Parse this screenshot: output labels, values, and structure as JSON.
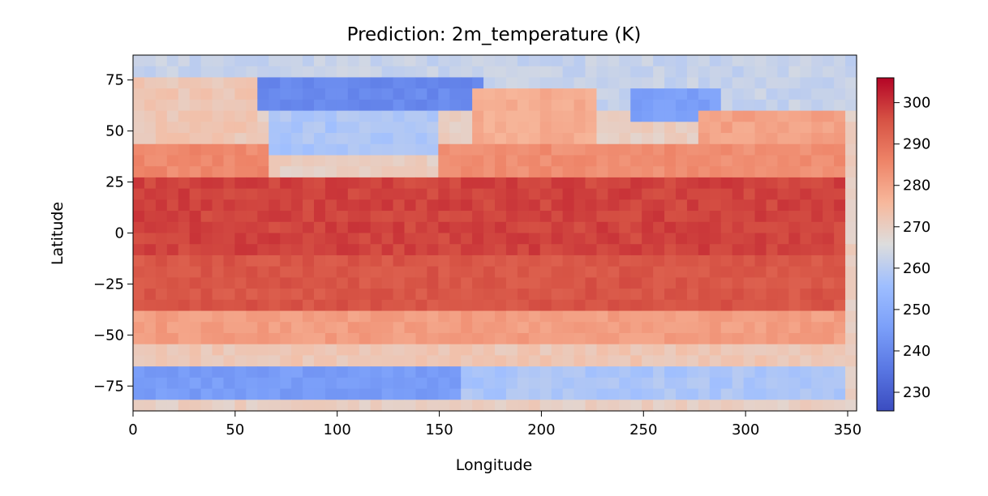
{
  "chart_data": {
    "type": "heatmap",
    "title": "Prediction: 2m_temperature (K)",
    "xlabel": "Longitude",
    "ylabel": "Latitude",
    "xlim": [
      0,
      354.375
    ],
    "ylim": [
      -87.1875,
      87.1875
    ],
    "grid": false,
    "colormap": "coolwarm",
    "x_ticks": [
      0,
      50,
      100,
      150,
      200,
      250,
      300,
      350
    ],
    "x_tick_labels": [
      "0",
      "50",
      "100",
      "150",
      "200",
      "250",
      "300",
      "350"
    ],
    "y_ticks": [
      75,
      50,
      25,
      0,
      -25,
      -50,
      -75
    ],
    "y_tick_labels": [
      "75",
      "50",
      "25",
      "0",
      "−25",
      "−50",
      "−75"
    ],
    "colorbar": {
      "range": [
        225.5,
        306
      ],
      "ticks": [
        300,
        290,
        280,
        270,
        260,
        250,
        240,
        230
      ],
      "tick_labels": [
        "300",
        "290",
        "280",
        "270",
        "260",
        "250",
        "240",
        "230"
      ]
    },
    "grid_shape": {
      "lon_count": 64,
      "lat_count": 32,
      "lon_step": 5.625,
      "lat_step": 5.625
    },
    "regions": [
      {
        "lat_range": [
          60,
          87
        ],
        "lon_range": [
          0,
          360
        ],
        "value": 262
      },
      {
        "lat_range": [
          45,
          75
        ],
        "lon_range": [
          0,
          60
        ],
        "value": 272
      },
      {
        "lat_range": [
          60,
          75
        ],
        "lon_range": [
          60,
          175
        ],
        "value": 240
      },
      {
        "lat_range": [
          35,
          60
        ],
        "lon_range": [
          70,
          150
        ],
        "value": 258
      },
      {
        "lat_range": [
          40,
          70
        ],
        "lon_range": [
          170,
          230
        ],
        "value": 278
      },
      {
        "lat_range": [
          55,
          70
        ],
        "lon_range": [
          245,
          290
        ],
        "value": 246
      },
      {
        "lat_range": [
          40,
          60
        ],
        "lon_range": [
          280,
          354
        ],
        "value": 280
      },
      {
        "lat_range": [
          25,
          45
        ],
        "lon_range": [
          0,
          70
        ],
        "value": 285
      },
      {
        "lat_range": [
          25,
          40
        ],
        "lon_range": [
          150,
          354
        ],
        "value": 284
      },
      {
        "lat_range": [
          -15,
          25
        ],
        "lon_range": [
          0,
          354
        ],
        "value": 298
      },
      {
        "lat_range": [
          -40,
          -15
        ],
        "lon_range": [
          0,
          354
        ],
        "value": 295
      },
      {
        "lat_range": [
          -60,
          -40
        ],
        "lon_range": [
          0,
          354
        ],
        "value": 281
      },
      {
        "lat_range": [
          -70,
          -60
        ],
        "lon_range": [
          0,
          354
        ],
        "value": 272
      },
      {
        "lat_range": [
          -87,
          -70
        ],
        "lon_range": [
          0,
          165
        ],
        "value": 245
      },
      {
        "lat_range": [
          -87,
          -70
        ],
        "lon_range": [
          165,
          354
        ],
        "value": 258
      }
    ]
  }
}
